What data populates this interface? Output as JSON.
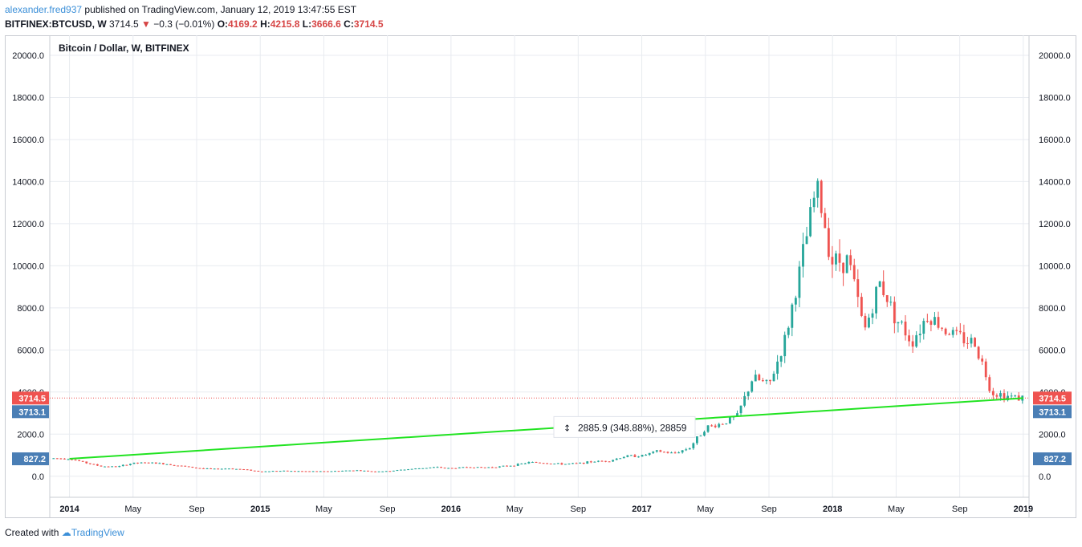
{
  "header": {
    "user": "alexander.fred937",
    "published_text": " published on TradingView.com, January 12, 2019 13:47:55 EST",
    "symbol": "BITFINEX:BTCUSD, W",
    "last": "3714.5",
    "change": "−0.3 (−0.01%)",
    "o_label": "O:",
    "o": "4169.2",
    "h_label": "H:",
    "h": "4215.8",
    "l_label": "L:",
    "l": "3666.6",
    "c_label": "C:",
    "c": "3714.5"
  },
  "footer": {
    "created_with": "Created with",
    "brand": "TradingView"
  },
  "colors": {
    "up": "#26a69a",
    "down": "#ef5350",
    "trendline": "#21e321",
    "price_label": "#ef5350",
    "crosshair_label": "#4a7eb5",
    "grid": "#e8ebf0"
  },
  "chart_data": {
    "type": "candlestick",
    "title": "Bitcoin / Dollar, W, BITFINEX",
    "ylim": [
      -1000,
      20800
    ],
    "y_ticks": [
      0,
      2000,
      4000,
      6000,
      8000,
      10000,
      12000,
      14000,
      16000,
      18000,
      20000
    ],
    "y_tick_labels": [
      "0.0",
      "2000.0",
      "4000.0",
      "6000.0",
      "8000.0",
      "10000.0",
      "12000.0",
      "14000.0",
      "16000.0",
      "18000.0",
      "20000.0"
    ],
    "x_tick_labels": [
      {
        "date": "2014-01",
        "label": "2014",
        "bold": true
      },
      {
        "date": "2014-05",
        "label": "May",
        "bold": false
      },
      {
        "date": "2014-09",
        "label": "Sep",
        "bold": false
      },
      {
        "date": "2015-01",
        "label": "2015",
        "bold": true
      },
      {
        "date": "2015-05",
        "label": "May",
        "bold": false
      },
      {
        "date": "2015-09",
        "label": "Sep",
        "bold": false
      },
      {
        "date": "2016-01",
        "label": "2016",
        "bold": true
      },
      {
        "date": "2016-05",
        "label": "May",
        "bold": false
      },
      {
        "date": "2016-09",
        "label": "Sep",
        "bold": false
      },
      {
        "date": "2017-01",
        "label": "2017",
        "bold": true
      },
      {
        "date": "2017-05",
        "label": "May",
        "bold": false
      },
      {
        "date": "2017-09",
        "label": "Sep",
        "bold": false
      },
      {
        "date": "2018-01",
        "label": "2018",
        "bold": true
      },
      {
        "date": "2018-05",
        "label": "May",
        "bold": false
      },
      {
        "date": "2018-09",
        "label": "Sep",
        "bold": false
      },
      {
        "date": "2019-01",
        "label": "2019",
        "bold": true
      }
    ],
    "price_line": 3714.5,
    "price_labels": [
      {
        "value": 3714.5,
        "text": "3714.5",
        "kind": "last"
      },
      {
        "value": 3713.1,
        "text": "3713.1",
        "kind": "crosshair"
      },
      {
        "value": 827.2,
        "text": "827.2",
        "kind": "crosshair"
      }
    ],
    "trendline": {
      "start": {
        "date": "2014-01",
        "price": 827.2
      },
      "end": {
        "date": "2019-01",
        "price": 3713.1
      }
    },
    "measure_label": "2885.9 (348.88%), 28859",
    "weekly_close": [
      {
        "date": "2013-12",
        "close": 850
      },
      {
        "date": "2014-01",
        "close": 840
      },
      {
        "date": "2014-02",
        "close": 640
      },
      {
        "date": "2014-03",
        "close": 470
      },
      {
        "date": "2014-04",
        "close": 450
      },
      {
        "date": "2014-05",
        "close": 620
      },
      {
        "date": "2014-06",
        "close": 640
      },
      {
        "date": "2014-07",
        "close": 590
      },
      {
        "date": "2014-08",
        "close": 490
      },
      {
        "date": "2014-09",
        "close": 390
      },
      {
        "date": "2014-10",
        "close": 340
      },
      {
        "date": "2014-11",
        "close": 370
      },
      {
        "date": "2014-12",
        "close": 320
      },
      {
        "date": "2015-01",
        "close": 220
      },
      {
        "date": "2015-02",
        "close": 255
      },
      {
        "date": "2015-03",
        "close": 245
      },
      {
        "date": "2015-04",
        "close": 235
      },
      {
        "date": "2015-05",
        "close": 230
      },
      {
        "date": "2015-06",
        "close": 255
      },
      {
        "date": "2015-07",
        "close": 285
      },
      {
        "date": "2015-08",
        "close": 230
      },
      {
        "date": "2015-09",
        "close": 236
      },
      {
        "date": "2015-10",
        "close": 315
      },
      {
        "date": "2015-11",
        "close": 375
      },
      {
        "date": "2015-12",
        "close": 430
      },
      {
        "date": "2016-01",
        "close": 375
      },
      {
        "date": "2016-02",
        "close": 435
      },
      {
        "date": "2016-03",
        "close": 415
      },
      {
        "date": "2016-04",
        "close": 450
      },
      {
        "date": "2016-05",
        "close": 530
      },
      {
        "date": "2016-06",
        "close": 670
      },
      {
        "date": "2016-07",
        "close": 625
      },
      {
        "date": "2016-08",
        "close": 575
      },
      {
        "date": "2016-09",
        "close": 610
      },
      {
        "date": "2016-10",
        "close": 700
      },
      {
        "date": "2016-11",
        "close": 745
      },
      {
        "date": "2016-12",
        "close": 960
      },
      {
        "date": "2017-01",
        "close": 970
      },
      {
        "date": "2017-02",
        "close": 1190
      },
      {
        "date": "2017-03",
        "close": 1080
      },
      {
        "date": "2017-04",
        "close": 1350
      },
      {
        "date": "2017-05",
        "close": 2300
      },
      {
        "date": "2017-06",
        "close": 2500
      },
      {
        "date": "2017-07",
        "close": 2850
      },
      {
        "date": "2017-08",
        "close": 4700
      },
      {
        "date": "2017-09",
        "close": 4300
      },
      {
        "date": "2017-10",
        "close": 6450
      },
      {
        "date": "2017-11",
        "close": 9950
      },
      {
        "date": "2017-12",
        "close": 13800
      },
      {
        "date": "2018-01",
        "close": 10200
      },
      {
        "date": "2018-02",
        "close": 10300
      },
      {
        "date": "2018-03",
        "close": 6900
      },
      {
        "date": "2018-04",
        "close": 9250
      },
      {
        "date": "2018-05",
        "close": 7500
      },
      {
        "date": "2018-06",
        "close": 6400
      },
      {
        "date": "2018-07",
        "close": 7700
      },
      {
        "date": "2018-08",
        "close": 7000
      },
      {
        "date": "2018-09",
        "close": 6600
      },
      {
        "date": "2018-10",
        "close": 6300
      },
      {
        "date": "2018-11",
        "close": 4000
      },
      {
        "date": "2018-12",
        "close": 3800
      },
      {
        "date": "2019-01",
        "close": 3714.5
      }
    ]
  }
}
